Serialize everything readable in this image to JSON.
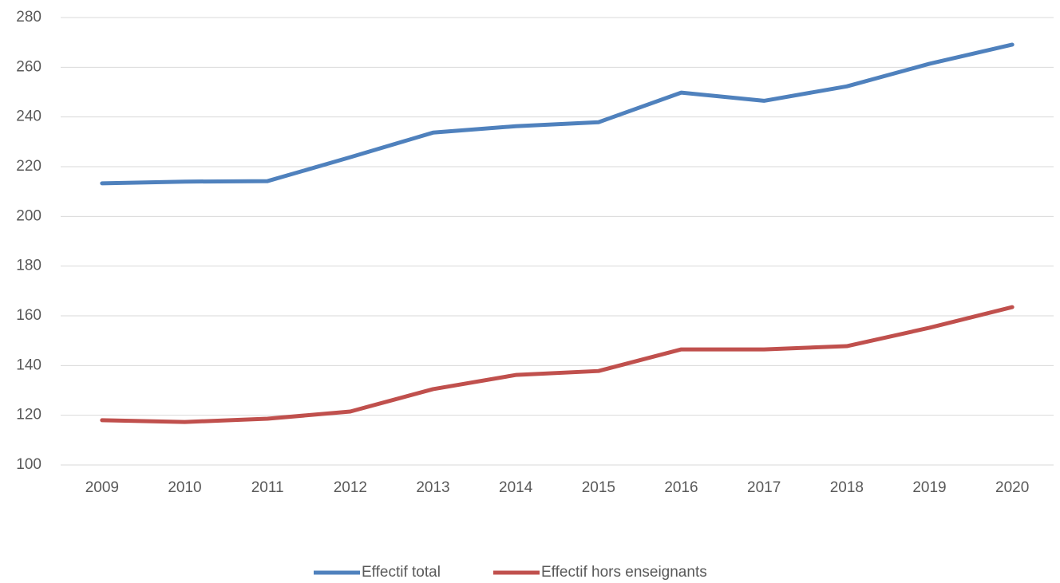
{
  "chart_data": {
    "type": "line",
    "categories": [
      "2009",
      "2010",
      "2011",
      "2012",
      "2013",
      "2014",
      "2015",
      "2016",
      "2017",
      "2018",
      "2019",
      "2020"
    ],
    "series": [
      {
        "name": "Effectif total",
        "color": "#4f81bd",
        "values": [
          213.3,
          214,
          214.2,
          223.8,
          233.7,
          236.3,
          237.9,
          249.8,
          246.5,
          252.3,
          261.4,
          269.1
        ]
      },
      {
        "name": "Effectif hors enseignants",
        "color": "#c0504d",
        "values": [
          118,
          117.3,
          118.6,
          121.5,
          130.5,
          136.2,
          137.8,
          146.5,
          146.5,
          147.8,
          155.2,
          163.5
        ]
      }
    ],
    "ylim": [
      100,
      280
    ],
    "yticks": [
      100,
      120,
      140,
      160,
      180,
      200,
      220,
      240,
      260,
      280
    ],
    "grid": true
  }
}
